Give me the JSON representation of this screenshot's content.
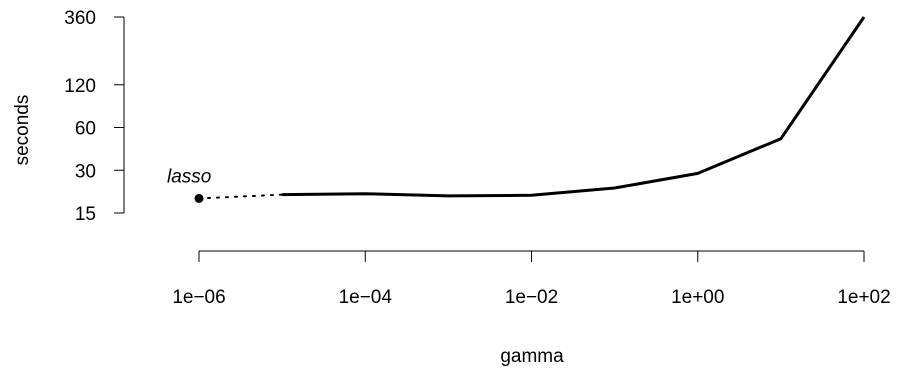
{
  "chart_data": {
    "type": "line",
    "xlabel": "gamma",
    "ylabel": "seconds",
    "x_scale": "log10",
    "y_scale": "log",
    "xlim": [
      1e-06,
      100
    ],
    "ylim": [
      15,
      360
    ],
    "x_ticks": [
      {
        "value": 1e-06,
        "label": "1e−06"
      },
      {
        "value": 0.0001,
        "label": "1e−04"
      },
      {
        "value": 0.01,
        "label": "1e−02"
      },
      {
        "value": 1,
        "label": "1e+00"
      },
      {
        "value": 100,
        "label": "1e+02"
      }
    ],
    "y_ticks": [
      {
        "value": 15,
        "label": "15"
      },
      {
        "value": 30,
        "label": "30"
      },
      {
        "value": 60,
        "label": "60"
      },
      {
        "value": 120,
        "label": "120"
      },
      {
        "value": 360,
        "label": "360"
      }
    ],
    "series": [
      {
        "x": [
          1e-05,
          0.0001,
          0.001,
          0.01,
          0.1,
          1,
          10,
          100
        ],
        "y": [
          20.2,
          20.5,
          19.8,
          20.0,
          22.5,
          28.5,
          50,
          360
        ]
      }
    ],
    "lasso_point": {
      "x": 1e-06,
      "y": 19.0,
      "label": "lasso"
    },
    "connector_style": "dotted",
    "grid": false,
    "legend": "none"
  }
}
